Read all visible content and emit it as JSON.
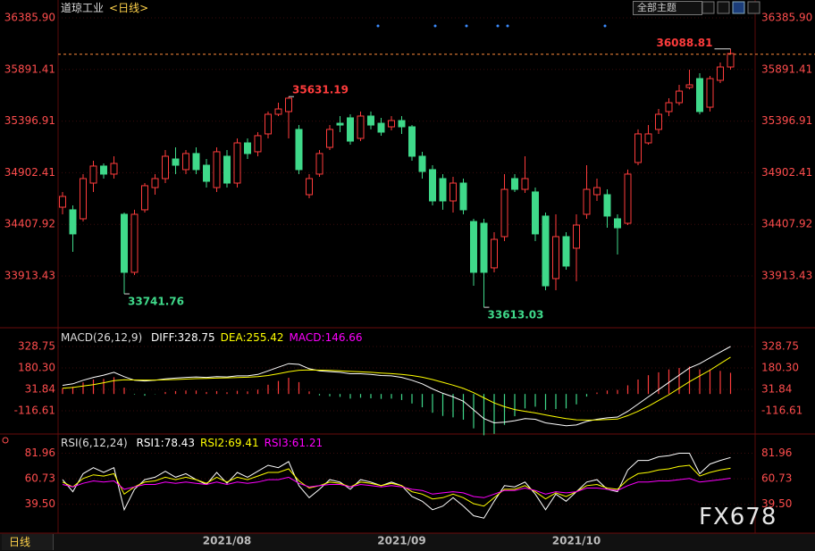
{
  "header": {
    "title": "道琼工业",
    "period": "<日线>",
    "theme_button": "全部主题"
  },
  "chart_data": [
    {
      "type": "candlestick",
      "categories": [
        null,
        null,
        null,
        null,
        null,
        null,
        null,
        null,
        null,
        null,
        null,
        null,
        null,
        null,
        null,
        null,
        "2021/08",
        null,
        null,
        null,
        null,
        null,
        null,
        null,
        null,
        null,
        null,
        null,
        null,
        null,
        null,
        null,
        null,
        "2021/09",
        null,
        null,
        null,
        null,
        null,
        null,
        null,
        null,
        null,
        null,
        null,
        null,
        null,
        null,
        null,
        null,
        "2021/10",
        null,
        null,
        null,
        null,
        null,
        null,
        null,
        null,
        null,
        null,
        null,
        null,
        null,
        null,
        null
      ],
      "open": [
        34572,
        34547,
        34461,
        34803,
        34966,
        34889,
        34504,
        33948,
        34547,
        34760,
        34846,
        35034,
        34932,
        35086,
        34974,
        34760,
        35060,
        34803,
        35188,
        35103,
        35274,
        35462,
        35488,
        35317,
        34692,
        34889,
        35145,
        35376,
        35428,
        35231,
        35445,
        35376,
        35342,
        35402,
        35342,
        35060,
        34932,
        34846,
        34632,
        34803,
        34435,
        34418,
        33991,
        34290,
        34846,
        34743,
        34718,
        34487,
        33888,
        34290,
        34179,
        34504,
        34692,
        34692,
        34461,
        34418,
        35000,
        35188,
        35317,
        35488,
        35573,
        35719,
        35804,
        35530,
        35787,
        35915
      ],
      "high": [
        34718,
        34589,
        34889,
        35017,
        34991,
        35060,
        34521,
        34547,
        34803,
        34889,
        35120,
        35145,
        35120,
        35145,
        35034,
        35145,
        35120,
        35231,
        35231,
        35291,
        35488,
        35573,
        35631.19,
        35359,
        34889,
        35120,
        35359,
        35445,
        35462,
        35488,
        35488,
        35428,
        35445,
        35445,
        35359,
        35103,
        34974,
        34889,
        34863,
        34846,
        34461,
        34461,
        34333,
        34889,
        34889,
        35060,
        34760,
        34521,
        34504,
        34333,
        34504,
        34974,
        34846,
        34743,
        34504,
        34932,
        35317,
        35359,
        35513,
        35616,
        35744,
        35890,
        35855,
        35830,
        35958,
        36088.81
      ],
      "low": [
        34504,
        34144,
        34435,
        34718,
        34846,
        34846,
        33741.76,
        33922,
        34521,
        34692,
        34803,
        34889,
        34889,
        34889,
        34760,
        34718,
        34760,
        34760,
        35034,
        35060,
        35231,
        35445,
        35231,
        34889,
        34658,
        34863,
        35120,
        35291,
        35171,
        35205,
        35317,
        35257,
        35308,
        35274,
        35017,
        34846,
        34589,
        34547,
        34521,
        34504,
        33819,
        33613.03,
        33948,
        34247,
        34718,
        34709,
        34247,
        33777,
        33777,
        33973,
        33862,
        34461,
        34632,
        34375,
        34119,
        34401,
        34974,
        35171,
        35274,
        35445,
        35548,
        35701,
        35462,
        35488,
        35761,
        35890
      ],
      "close": [
        34675,
        34316,
        34846,
        34966,
        34889,
        34991,
        33948,
        34504,
        34778,
        34846,
        35060,
        34974,
        35086,
        34932,
        34820,
        35103,
        34803,
        35188,
        35086,
        35257,
        35462,
        35513,
        35616,
        34932,
        34846,
        35086,
        35317,
        35359,
        35205,
        35445,
        35359,
        35291,
        35402,
        35342,
        35060,
        34914,
        34632,
        34632,
        34803,
        34547,
        33948,
        33948,
        34264,
        34743,
        34743,
        34846,
        34316,
        33819,
        34290,
        34008,
        34401,
        34743,
        34760,
        34487,
        34375,
        34889,
        35274,
        35274,
        35462,
        35573,
        35684,
        35744,
        35488,
        35804,
        35915,
        36044
      ],
      "up_color": "#ff3c3c",
      "down_color": "#3fd98a",
      "ylim": [
        33460,
        36514
      ],
      "yticks": [
        {
          "value": 36385.9,
          "label": "36385.90"
        },
        35891.41,
        35396.91,
        34902.41,
        34407.92,
        33913.43
      ],
      "grid": true,
      "annotations": [
        {
          "x": 22,
          "value": 35631.19
        },
        {
          "x": 6,
          "value": 33741.76
        },
        {
          "x": 41,
          "value": 33613.03
        },
        {
          "x": 65,
          "value": 36088.81,
          "line": true
        }
      ]
    },
    {
      "type": "macd",
      "indicator": "MACD(26,12,9)",
      "ylim": [
        -271,
        440
      ],
      "yticks": [
        328.75,
        {
          "value": 180.3,
          "label": "180.30"
        },
        31.84,
        -116.61
      ],
      "grid": true,
      "series": [
        {
          "name": "DIFF",
          "color": "#ffffff",
          "values": [
            60,
            70,
            95,
            115,
            130,
            150,
            120,
            95,
            90,
            95,
            105,
            110,
            115,
            118,
            115,
            120,
            118,
            125,
            125,
            135,
            160,
            185,
            210,
            205,
            175,
            160,
            155,
            150,
            140,
            140,
            135,
            128,
            125,
            115,
            95,
            70,
            35,
            5,
            -20,
            -50,
            -110,
            -170,
            -200,
            -195,
            -185,
            -170,
            -175,
            -200,
            -210,
            -220,
            -215,
            -190,
            -175,
            -165,
            -160,
            -120,
            -70,
            -20,
            30,
            80,
            130,
            180,
            210,
            250,
            290,
            328.75
          ]
        },
        {
          "name": "DEA",
          "color": "#ffff00",
          "values": [
            40,
            45,
            55,
            65,
            78,
            92,
            98,
            97,
            96,
            96,
            98,
            100,
            103,
            106,
            108,
            110,
            112,
            114,
            116,
            120,
            128,
            140,
            154,
            164,
            166,
            165,
            163,
            160,
            156,
            153,
            150,
            145,
            141,
            136,
            128,
            116,
            100,
            81,
            61,
            39,
            9,
            -27,
            -62,
            -88,
            -108,
            -120,
            -131,
            -145,
            -158,
            -170,
            -179,
            -181,
            -180,
            -177,
            -174,
            -150,
            -120,
            -85,
            -45,
            -5,
            40,
            85,
            125,
            165,
            210,
            255.42
          ]
        },
        {
          "name": "MACD",
          "color": "#ff00ff",
          "bar": true,
          "up_color": "#ff3c3c",
          "down_color": "#3fd98a",
          "values": [
            40,
            50,
            80,
            100,
            104,
            116,
            44,
            -4,
            -12,
            -2,
            14,
            20,
            24,
            24,
            14,
            20,
            12,
            22,
            18,
            30,
            64,
            90,
            112,
            82,
            18,
            -10,
            -16,
            -20,
            -32,
            -26,
            -30,
            -34,
            -32,
            -42,
            -66,
            -92,
            -130,
            -152,
            -162,
            -178,
            -238,
            -286,
            -276,
            -214,
            -154,
            -100,
            -88,
            -110,
            -104,
            -100,
            -72,
            -18,
            10,
            24,
            28,
            60,
            100,
            130,
            150,
            170,
            180,
            190,
            170,
            170,
            160,
            146.66
          ]
        }
      ]
    },
    {
      "type": "line",
      "indicator": "RSI(6,12,24)",
      "ylim": [
        17,
        95
      ],
      "yticks": [
        81.96,
        60.73,
        {
          "value": 39.5,
          "label": "39.50"
        }
      ],
      "grid": true,
      "series": [
        {
          "name": "RSI1",
          "color": "#ffffff",
          "values": [
            60,
            50,
            65,
            70,
            66,
            70,
            35,
            52,
            60,
            62,
            67,
            62,
            65,
            60,
            56,
            66,
            57,
            66,
            62,
            67,
            72,
            70,
            75,
            55,
            45,
            52,
            60,
            58,
            52,
            60,
            58,
            55,
            58,
            55,
            46,
            42,
            35,
            38,
            45,
            38,
            30,
            28,
            42,
            55,
            54,
            58,
            48,
            35,
            48,
            42,
            50,
            58,
            60,
            52,
            50,
            68,
            76,
            76,
            79,
            80,
            82,
            82,
            65,
            73,
            76,
            78.43
          ]
        },
        {
          "name": "RSI2",
          "color": "#ffff00",
          "values": [
            58,
            54,
            61,
            64,
            63,
            65,
            48,
            54,
            58,
            59,
            62,
            60,
            62,
            60,
            57,
            62,
            58,
            62,
            60,
            63,
            66,
            66,
            69,
            59,
            53,
            55,
            58,
            57,
            54,
            58,
            57,
            55,
            57,
            55,
            50,
            48,
            44,
            45,
            48,
            45,
            40,
            38,
            45,
            52,
            52,
            55,
            50,
            44,
            49,
            46,
            50,
            55,
            56,
            53,
            52,
            60,
            65,
            66,
            68,
            69,
            71,
            72,
            63,
            66,
            68,
            69.41
          ]
        },
        {
          "name": "RSI3",
          "color": "#ff00ff",
          "values": [
            56,
            54,
            57,
            59,
            58,
            59,
            52,
            54,
            56,
            56,
            58,
            57,
            58,
            57,
            56,
            58,
            56,
            58,
            57,
            58,
            60,
            60,
            62,
            57,
            54,
            55,
            56,
            56,
            54,
            56,
            55,
            54,
            55,
            54,
            52,
            51,
            48,
            49,
            50,
            49,
            46,
            45,
            48,
            51,
            51,
            53,
            51,
            48,
            50,
            49,
            50,
            53,
            53,
            52,
            51,
            55,
            58,
            58,
            59,
            59,
            60,
            61,
            58,
            59,
            60,
            61.21
          ]
        }
      ]
    }
  ],
  "bottom_tab": "日线",
  "watermark": "FX678"
}
